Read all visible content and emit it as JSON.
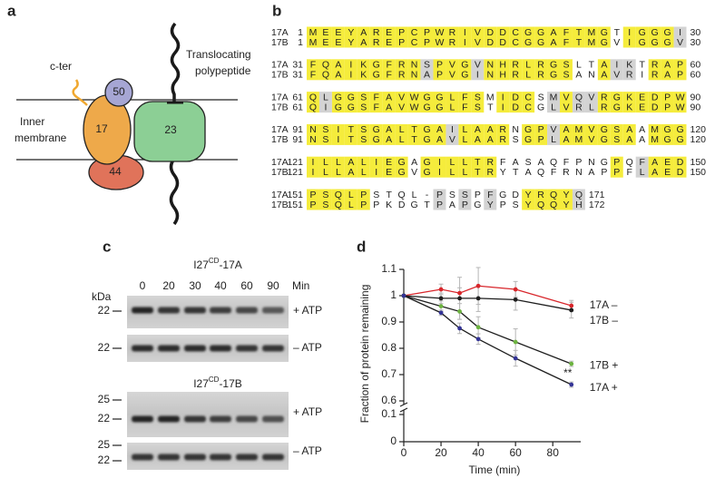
{
  "panel_a": {
    "label": "a",
    "c_ter": "c-ter",
    "translocating": [
      "Translocating",
      "polypeptide"
    ],
    "membrane": [
      "Inner",
      "membrane"
    ],
    "subunits": [
      "50",
      "17",
      "23",
      "44"
    ]
  },
  "panel_b": {
    "label": "b",
    "blocks": [
      {
        "rows": [
          {
            "name": "17A",
            "start": 1,
            "seq": "MEEYAREPCPWRIVDDCGGAFTMGTIGGGI",
            "end": 30
          },
          {
            "name": "17B",
            "start": 1,
            "seq": "MEEYAREPCPWRIVDDCGGAFTMGVIGGGV",
            "end": 30
          }
        ],
        "shading": "yyyyyyyyyyyyyyyyyyyyyyyy yyyyg"
      },
      {
        "rows": [
          {
            "name": "17A",
            "start": 31,
            "seq": "FQAIKGFRNSPVGVNHRLRGSLTAIKTRAP",
            "end": 60
          },
          {
            "name": "17B",
            "start": 31,
            "seq": "FQAIKGFRNAPVGINHRLRGSANAVRIRAP",
            "end": 60
          }
        ],
        "shading": "yyyyyyyyygyyygyyyyyyy  ygg yyy"
      },
      {
        "rows": [
          {
            "name": "17A",
            "start": 61,
            "seq": "QLGGSFAVWGGLFSMIDCSMVQVRGKEDPW",
            "end": 90
          },
          {
            "name": "17B",
            "start": 61,
            "seq": "QIGGSFAVWGGLFSTIDCGLVRLRGKEDPW",
            "end": 90
          }
        ],
        "shading": "ygyyyyyyyyyyyy yyy gyggyyyyyyy"
      },
      {
        "rows": [
          {
            "name": "17A",
            "start": 91,
            "seq": "NSITSGALTGAILAARNGPVAMVGSAAMGG",
            "end": 120
          },
          {
            "name": "17B",
            "start": 91,
            "seq": "NSITSGALTGAVLAARSGPLAMVGSAAMGG",
            "end": 120
          }
        ],
        "shading": "yyyyyyyyyyygyyyy yygyyyyyy yyy"
      },
      {
        "rows": [
          {
            "name": "17A",
            "start": 121,
            "seq": "ILLALIEGAGILLTRFASAQFPNGPQFAED",
            "end": 150
          },
          {
            "name": "17B",
            "start": 121,
            "seq": "ILLALIEGVGILLTRYTAQFRNAPPFLAED",
            "end": 150
          }
        ],
        "shading": "yyyyyyyy yyyyyy         y gyyy"
      },
      {
        "rows": [
          {
            "name": "17A",
            "start": 151,
            "seq": "PSQLPSTQL-PSSPFGDYRQYQ",
            "end": 171
          },
          {
            "name": "17B",
            "start": 151,
            "seq": "PSQLPPKDGTPAPGYPSYQQYH",
            "end": 172
          }
        ],
        "shading": "yyyyy     g g g  yyyyg"
      }
    ],
    "colors": {
      "y": "#f5ec3c",
      "g": "#d3d3d3"
    }
  },
  "panel_c": {
    "label": "c",
    "titles": [
      {
        "base": "I27",
        "sup": "CD",
        "suffix": "-17A"
      },
      {
        "base": "I27",
        "sup": "CD",
        "suffix": "-17B"
      }
    ],
    "kda": "kDa",
    "lanes": [
      0,
      20,
      30,
      40,
      60,
      90
    ],
    "lanes_unit": "Min",
    "gels": [
      {
        "markers": [
          22
        ],
        "condition": "+ ATP"
      },
      {
        "markers": [
          22
        ],
        "condition": "– ATP"
      },
      {
        "markers": [
          25,
          22
        ],
        "condition": "+ ATP"
      },
      {
        "markers": [
          25,
          22
        ],
        "condition": "– ATP"
      }
    ]
  },
  "chart_data": {
    "type": "line",
    "label": "d",
    "x_label": "Time (min)",
    "y_label": "Fraction of protein remaining",
    "x": [
      0,
      20,
      30,
      40,
      60,
      90
    ],
    "xlim": [
      0,
      95
    ],
    "xticks": [
      0,
      20,
      40,
      60,
      80
    ],
    "ylim": [
      0.6,
      1.1
    ],
    "yticks": [
      0.6,
      0.7,
      0.8,
      0.9,
      1,
      1.1
    ],
    "ylim_break": [
      0,
      0.1
    ],
    "yticks_break": [
      0,
      0.1
    ],
    "series": [
      {
        "name": "17A –",
        "color": "#d8262b",
        "values": [
          1,
          1.024,
          1.01,
          1.037,
          1.024,
          0.962
        ],
        "errors": [
          0,
          0.02,
          0.02,
          0.07,
          0.03,
          0.02
        ]
      },
      {
        "name": "17B –",
        "color": "#1e1e1e",
        "values": [
          1,
          0.99,
          0.99,
          0.99,
          0.985,
          0.945
        ],
        "errors": [
          0,
          0.02,
          0.08,
          0.05,
          0.04,
          0.03
        ]
      },
      {
        "name": "17B +",
        "color": "#6cb33f",
        "values": [
          1,
          0.96,
          0.94,
          0.88,
          0.824,
          0.741
        ],
        "errors": [
          0,
          0.02,
          0.03,
          0.04,
          0.05,
          0.01
        ]
      },
      {
        "name": "17A +",
        "color": "#343496",
        "values": [
          1,
          0.935,
          0.876,
          0.835,
          0.762,
          0.662
        ],
        "errors": [
          0,
          0.01,
          0.02,
          0.02,
          0.03,
          0.01
        ]
      }
    ],
    "annotation": "**"
  }
}
